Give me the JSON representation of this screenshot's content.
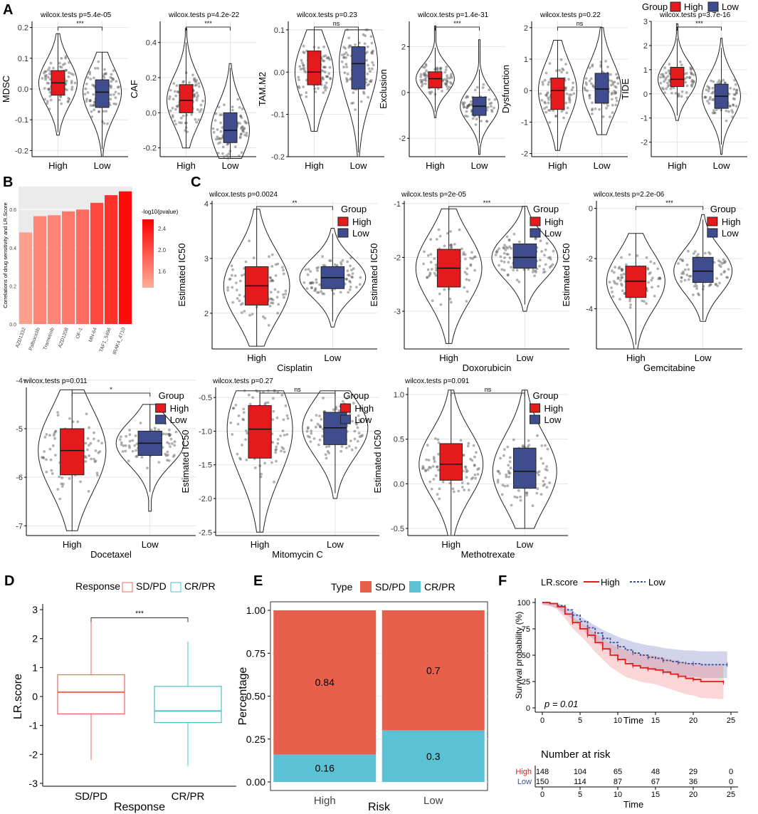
{
  "colors": {
    "high": "#e41a1c",
    "low": "#3f4d8f",
    "sdpd": "#e8604c",
    "crpr": "#5bc2d6",
    "sdpd_line": "#f0645a",
    "crpr_line": "#4bc0cf",
    "panel_bg": "#ebebeb",
    "grid": "#dedede",
    "violin_outline": "#222222"
  },
  "panel_letters": {
    "a": "A",
    "b": "B",
    "c": "C",
    "d": "D",
    "e": "E",
    "f": "F"
  },
  "panelA": {
    "legend": {
      "title": "Group",
      "items": [
        "High",
        "Low"
      ]
    },
    "plots": [
      {
        "ylabel": "MDSC",
        "test": "wilcox.tests p=5.4e-05",
        "sig": "***",
        "ylim": [
          -0.22,
          0.22
        ],
        "ticks": [
          0.2,
          0.1,
          0.0,
          -0.1,
          -0.2
        ],
        "groups": [
          {
            "name": "High",
            "min": -0.15,
            "q1": -0.02,
            "med": 0.02,
            "q3": 0.06,
            "max": 0.18
          },
          {
            "name": "Low",
            "min": -0.22,
            "q1": -0.06,
            "med": -0.01,
            "q3": 0.03,
            "max": 0.12
          }
        ]
      },
      {
        "ylabel": "CAF",
        "test": "wilcox.tests p=4.2e-22",
        "sig": "***",
        "ylim": [
          -0.25,
          0.52
        ],
        "ticks": [
          0.4,
          0.2,
          0.0,
          -0.2
        ],
        "groups": [
          {
            "name": "High",
            "min": -0.2,
            "q1": 0.0,
            "med": 0.07,
            "q3": 0.16,
            "max": 0.48
          },
          {
            "name": "Low",
            "min": -0.26,
            "q1": -0.17,
            "med": -0.1,
            "q3": 0.0,
            "max": 0.28
          }
        ]
      },
      {
        "ylabel": "TAM.M2",
        "test": "wilcox.tests p=0.23",
        "sig": "ns",
        "ylim": [
          -0.2,
          0.12
        ],
        "ticks": [
          0.1,
          0.0,
          -0.1,
          -0.2
        ],
        "groups": [
          {
            "name": "High",
            "min": -0.14,
            "q1": -0.03,
            "med": 0.0,
            "q3": 0.05,
            "max": 0.1
          },
          {
            "name": "Low",
            "min": -0.2,
            "q1": -0.04,
            "med": 0.02,
            "q3": 0.06,
            "max": 0.1
          }
        ]
      },
      {
        "ylabel": "Exclusion",
        "test": "wilcox.tests p=1.4e-31",
        "sig": "***",
        "ylim": [
          -2.8,
          3.1
        ],
        "ticks": [
          2,
          0,
          -2
        ],
        "groups": [
          {
            "name": "High",
            "min": -1.1,
            "q1": 0.2,
            "med": 0.6,
            "q3": 0.9,
            "max": 2.9
          },
          {
            "name": "Low",
            "min": -2.7,
            "q1": -1.0,
            "med": -0.6,
            "q3": -0.2,
            "max": 2.3
          }
        ]
      },
      {
        "ylabel": "Dysfunction",
        "test": "wilcox.tests p=0.22",
        "sig": "ns",
        "ylim": [
          -2.1,
          2.2
        ],
        "ticks": [
          2,
          1,
          0,
          -1,
          -2
        ],
        "groups": [
          {
            "name": "High",
            "min": -1.9,
            "q1": -0.6,
            "med": 0.0,
            "q3": 0.4,
            "max": 1.6
          },
          {
            "name": "Low",
            "min": -1.4,
            "q1": -0.4,
            "med": 0.05,
            "q3": 0.55,
            "max": 2.0
          }
        ]
      },
      {
        "ylabel": "TIDE",
        "test": "wilcox.tests p=3.7e-16",
        "sig": "***",
        "ylim": [
          -2.6,
          3.0
        ],
        "ticks": [
          3,
          2,
          1,
          0,
          -1,
          -2
        ],
        "groups": [
          {
            "name": "High",
            "min": -1.1,
            "q1": 0.3,
            "med": 0.6,
            "q3": 1.1,
            "max": 2.9
          },
          {
            "name": "Low",
            "min": -2.5,
            "q1": -0.6,
            "med": -0.1,
            "q3": 0.4,
            "max": 2.3
          }
        ]
      }
    ]
  },
  "panelB": {
    "ylabel": "Correlations of drug sensitivity and LR.Score",
    "legend_title": "-log10(pvalue)",
    "legend_ticks": [
      "2.4",
      "2.0",
      "1.6"
    ],
    "ticks": [
      0.6,
      0.4,
      0.2,
      0.0
    ],
    "drugs": [
      "AZD1332",
      "Palbociclib",
      "Trametinib",
      "AZD1208",
      "OF-1",
      "MN-64",
      "TAF1_5496",
      "IRAK4_4710"
    ],
    "values": [
      0.48,
      0.565,
      0.57,
      0.59,
      0.6,
      0.635,
      0.675,
      0.695
    ],
    "pvals": [
      1.4,
      1.6,
      1.6,
      1.7,
      1.8,
      2.1,
      2.3,
      2.6
    ]
  },
  "panelC": {
    "ylabel": "Estimated IC50",
    "legend": {
      "title": "Group",
      "items": [
        "High",
        "Low"
      ]
    },
    "plots": [
      {
        "drug": "Cisplatin",
        "test": "wilcox.tests p=0.0024",
        "sig": "**",
        "ylim": [
          1.35,
          4.05
        ],
        "ticks": [
          4,
          3,
          2
        ],
        "groups": [
          {
            "name": "High",
            "min": 1.4,
            "q1": 2.15,
            "med": 2.5,
            "q3": 2.85,
            "max": 3.9
          },
          {
            "name": "Low",
            "min": 1.75,
            "q1": 2.45,
            "med": 2.65,
            "q3": 2.85,
            "max": 3.55
          }
        ]
      },
      {
        "drug": "Doxorubicin",
        "test": "wilcox.tests p=2e-05",
        "sig": "***",
        "ylim": [
          -3.7,
          -0.95
        ],
        "ticks": [
          -1,
          -2,
          -3
        ],
        "groups": [
          {
            "name": "High",
            "min": -3.6,
            "q1": -2.55,
            "med": -2.2,
            "q3": -1.85,
            "max": -1.1
          },
          {
            "name": "Low",
            "min": -3.0,
            "q1": -2.2,
            "med": -2.0,
            "q3": -1.75,
            "max": -1.05
          }
        ]
      },
      {
        "drug": "Gemcitabine",
        "test": "wilcox.tests p=2.2e-06",
        "sig": "***",
        "ylim": [
          -5.6,
          0.3
        ],
        "ticks": [
          0,
          -2,
          -4
        ],
        "groups": [
          {
            "name": "High",
            "min": -5.6,
            "q1": -3.55,
            "med": -2.9,
            "q3": -2.3,
            "max": -1.0
          },
          {
            "name": "Low",
            "min": -4.5,
            "q1": -2.95,
            "med": -2.5,
            "q3": -1.95,
            "max": -0.25
          }
        ]
      },
      {
        "drug": "Docetaxel",
        "test": "wilcox.tests p=0.011",
        "sig": "*",
        "ylim": [
          -7.2,
          -4.15
        ],
        "ticks": [
          -4,
          -5,
          -6,
          -7
        ],
        "groups": [
          {
            "name": "High",
            "min": -7.1,
            "q1": -5.95,
            "med": -5.45,
            "q3": -5.0,
            "max": -4.2
          },
          {
            "name": "Low",
            "min": -6.7,
            "q1": -5.55,
            "med": -5.3,
            "q3": -5.05,
            "max": -4.5
          }
        ]
      },
      {
        "drug": "Mitomycin C",
        "test": "wilcox.tests p=0.27",
        "sig": "ns",
        "ylim": [
          -2.55,
          -0.35
        ],
        "ticks": [
          -0.5,
          -1.0,
          -1.5,
          -2.0,
          -2.5
        ],
        "groups": [
          {
            "name": "High",
            "min": -2.5,
            "q1": -1.4,
            "med": -0.97,
            "q3": -0.62,
            "max": -0.4
          },
          {
            "name": "Low",
            "min": -2.0,
            "q1": -1.2,
            "med": -0.95,
            "q3": -0.72,
            "max": -0.4
          }
        ]
      },
      {
        "drug": "Methotrexate",
        "test": "wilcox.tests p=0.091",
        "sig": "ns",
        "ylim": [
          -0.58,
          1.08
        ],
        "ticks": [
          1.0,
          0.5,
          0.0,
          -0.5
        ],
        "groups": [
          {
            "name": "High",
            "min": -0.58,
            "q1": 0.04,
            "med": 0.22,
            "q3": 0.45,
            "max": 1.05
          },
          {
            "name": "Low",
            "min": -0.5,
            "q1": -0.05,
            "med": 0.14,
            "q3": 0.4,
            "max": 1.05
          }
        ]
      }
    ]
  },
  "panelD": {
    "legend_title": "Response",
    "legend_items": [
      "SD/PD",
      "CR/PR"
    ],
    "ylabel": "LR.score",
    "xlabel": "Response",
    "sig": "***",
    "ylim": [
      -3.1,
      3.1
    ],
    "ticks": [
      3,
      2,
      1,
      0,
      -1,
      -2,
      -3
    ],
    "groups": [
      {
        "name": "SD/PD",
        "min": -2.2,
        "q1": -0.6,
        "med": 0.15,
        "q3": 0.75,
        "max": 2.6
      },
      {
        "name": "CR/PR",
        "min": -2.4,
        "q1": -0.9,
        "med": -0.5,
        "q3": 0.35,
        "max": 1.9
      }
    ]
  },
  "panelE": {
    "legend_title": "Type",
    "legend_items": [
      "SD/PD",
      "CR/PR"
    ],
    "ylabel": "Percentage",
    "xlabel": "Risk",
    "ticks": [
      "1.00",
      "0.75",
      "0.50",
      "0.25",
      "0.00"
    ],
    "categories": [
      "High",
      "Low"
    ],
    "sdpd": [
      0.84,
      0.7
    ],
    "crpr": [
      0.16,
      0.3
    ],
    "labels_sdpd": [
      "0.84",
      "0.7"
    ],
    "labels_crpr": [
      "0.16",
      "0.3"
    ]
  },
  "panelF": {
    "legend_title": "LR.score",
    "legend_items": [
      "High",
      "Low"
    ],
    "ylabel": "Survival probability (%)",
    "xlabel": "Time",
    "pvalue": "p = 0.01",
    "yticks": [
      100,
      75,
      50,
      25,
      0
    ],
    "xticks": [
      0,
      5,
      10,
      15,
      20,
      25
    ],
    "high_curve": [
      [
        0,
        100
      ],
      [
        1,
        99
      ],
      [
        2,
        96
      ],
      [
        3,
        89
      ],
      [
        4,
        81
      ],
      [
        5,
        75
      ],
      [
        6,
        69
      ],
      [
        7,
        62
      ],
      [
        8,
        56
      ],
      [
        9,
        50
      ],
      [
        10,
        46
      ],
      [
        11,
        42
      ],
      [
        12,
        40
      ],
      [
        13,
        38
      ],
      [
        14,
        37
      ],
      [
        15,
        36
      ],
      [
        16,
        34
      ],
      [
        17,
        32
      ],
      [
        18,
        30
      ],
      [
        19,
        28
      ],
      [
        20,
        27
      ],
      [
        21,
        25
      ],
      [
        24,
        24
      ]
    ],
    "low_curve": [
      [
        0,
        100
      ],
      [
        1,
        99
      ],
      [
        2,
        97
      ],
      [
        3,
        93
      ],
      [
        4,
        88
      ],
      [
        5,
        82
      ],
      [
        6,
        76
      ],
      [
        7,
        71
      ],
      [
        8,
        66
      ],
      [
        9,
        62
      ],
      [
        10,
        58
      ],
      [
        11,
        55
      ],
      [
        12,
        52
      ],
      [
        13,
        50
      ],
      [
        14,
        48
      ],
      [
        15,
        47
      ],
      [
        16,
        45
      ],
      [
        17,
        44
      ],
      [
        18,
        43
      ],
      [
        19,
        42
      ],
      [
        20,
        42
      ],
      [
        21,
        41
      ],
      [
        24.5,
        41
      ]
    ],
    "risk_title": "Number at risk",
    "risk_rows": [
      {
        "name": "High",
        "values": [
          "148",
          "104",
          "65",
          "48",
          "29",
          "0"
        ]
      },
      {
        "name": "Low",
        "values": [
          "150",
          "114",
          "87",
          "67",
          "36",
          "0"
        ]
      }
    ],
    "risk_xlabel": "Time"
  }
}
